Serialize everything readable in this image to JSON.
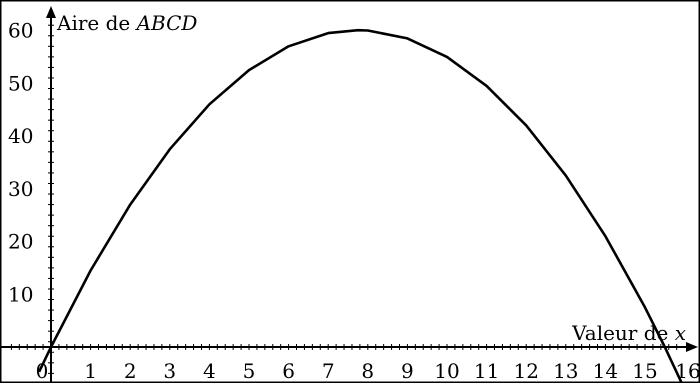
{
  "chart_data": {
    "type": "line",
    "xlabel_prefix": "Valeur de ",
    "xlabel_var": "x",
    "ylabel_prefix": "Aire de ",
    "ylabel_var": "ABCD",
    "xlim": [
      -1,
      16
    ],
    "ylim": [
      -7,
      62
    ],
    "x_ticks": [
      0,
      1,
      2,
      3,
      4,
      5,
      6,
      7,
      8,
      9,
      10,
      11,
      12,
      13,
      14,
      15,
      16
    ],
    "y_ticks": [
      10,
      20,
      30,
      40,
      50,
      60
    ],
    "grid": "frame only",
    "series": [
      {
        "x": [
          -0.3,
          0,
          1,
          2,
          3,
          4,
          5,
          6,
          7,
          7.75,
          8,
          9,
          10,
          11,
          12,
          13,
          14,
          15,
          15.5,
          16
        ],
        "y": [
          -4.7,
          0,
          14.5,
          27,
          37.5,
          46,
          52.5,
          57,
          59.5,
          60.06,
          60,
          58.5,
          55,
          49.5,
          42,
          32.5,
          21,
          7.5,
          0,
          -8
        ]
      }
    ]
  }
}
